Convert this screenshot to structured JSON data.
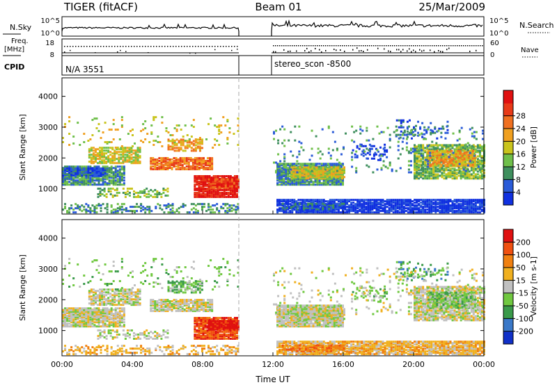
{
  "header": {
    "radar": "TIGER (fitACF)",
    "beam": "Beam 01",
    "date": "25/Mar/2009"
  },
  "summary_panel": {
    "nsky_label": "N.Sky",
    "nsky_ticks": [
      "10^5",
      "10^0"
    ],
    "nsearch_label": "N.Search",
    "nsearch_ticks": [
      "10^5",
      "10^0"
    ],
    "freq_label_1": "Freq.",
    "freq_label_2": "[MHz]",
    "freq_ticks": [
      "18",
      "8"
    ],
    "nave_label": "Nave",
    "nave_ticks": [
      "60",
      "0"
    ],
    "cpid_label": "CPID",
    "cpid_segments": [
      {
        "start_hour": 0,
        "text": "N/A 3551"
      },
      {
        "start_hour": 12,
        "text": "stereo_scon -8500"
      }
    ],
    "data_gap": [
      10,
      12
    ]
  },
  "chart_data": [
    {
      "type": "heatmap",
      "name": "power",
      "xlabel": "Time UT",
      "ylabel": "Slant Range [km]",
      "xlim": [
        0,
        24
      ],
      "ylim": [
        180,
        4600
      ],
      "x_ticks": [
        "00:00",
        "04:00",
        "08:00",
        "12:00",
        "16:00",
        "20:00",
        "00:00"
      ],
      "y_ticks": [
        1000,
        2000,
        3000,
        4000
      ],
      "colorbar": {
        "label": "Power [dB]",
        "ticks": [
          4,
          8,
          12,
          16,
          20,
          24,
          28
        ],
        "colors": [
          "#1030e0",
          "#2a5bd8",
          "#3f8f5e",
          "#6fbf4a",
          "#c9c41c",
          "#f0a020",
          "#f07020",
          "#e83a18",
          "#e01010"
        ]
      }
    },
    {
      "type": "heatmap",
      "name": "velocity",
      "xlabel": "Time UT",
      "ylabel": "Slant Range [km]",
      "xlim": [
        0,
        24
      ],
      "ylim": [
        180,
        4600
      ],
      "x_ticks": [
        "00:00",
        "04:00",
        "08:00",
        "12:00",
        "16:00",
        "20:00",
        "00:00"
      ],
      "y_ticks": [
        1000,
        2000,
        3000,
        4000
      ],
      "colorbar": {
        "label": "Velocity [m s-1]",
        "ticks": [
          200,
          100,
          50,
          15,
          -15,
          -50,
          -100,
          -200
        ],
        "colors": [
          "#1030c8",
          "#3a78c8",
          "#3a9a4a",
          "#70c840",
          "#c0c0c0",
          "#f0b020",
          "#f08010",
          "#f05010",
          "#e01010"
        ]
      }
    }
  ]
}
